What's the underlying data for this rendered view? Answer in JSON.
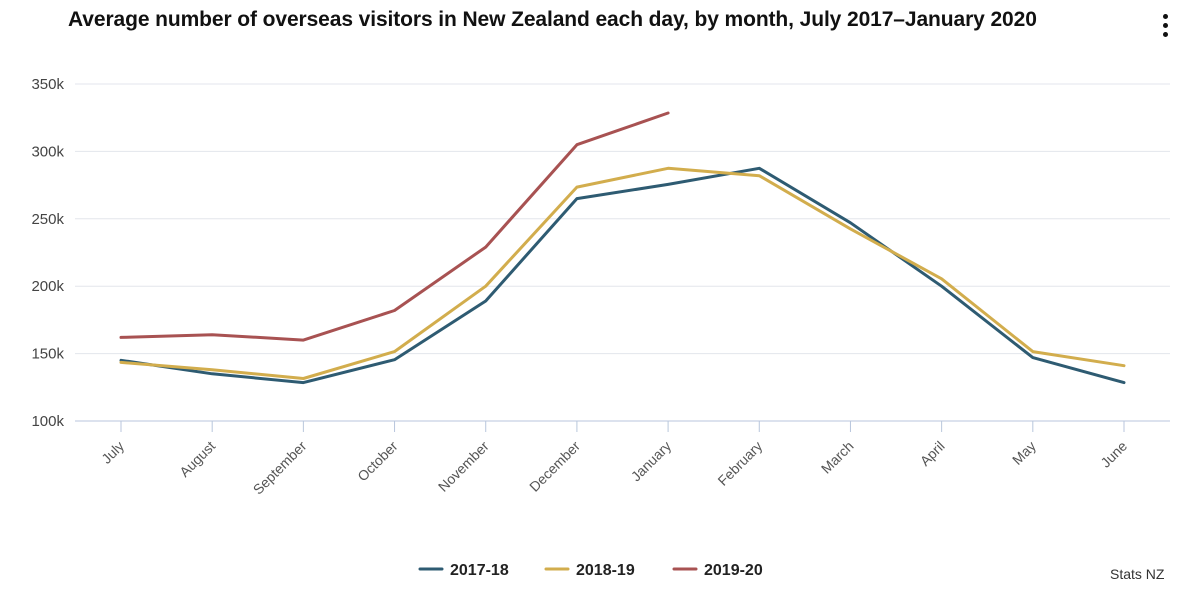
{
  "header": {
    "title": "Average number of overseas visitors in New Zealand each day, by month, July 2017–January 2020"
  },
  "source": "Stats NZ",
  "menu": {
    "icon": "more-vertical-icon"
  },
  "chart_data": {
    "type": "line",
    "title": "Average number of overseas visitors in New Zealand each day, by month, July 2017–January 2020",
    "xlabel": "",
    "ylabel": "",
    "categories": [
      "July",
      "August",
      "September",
      "October",
      "November",
      "December",
      "January",
      "February",
      "March",
      "April",
      "May",
      "June"
    ],
    "ylim": [
      100000,
      350000
    ],
    "yticks": [
      100000,
      150000,
      200000,
      250000,
      300000,
      350000
    ],
    "ytick_labels": [
      "100k",
      "150k",
      "200k",
      "250k",
      "300k",
      "350k"
    ],
    "grid": true,
    "legend_position": "bottom-center",
    "series": [
      {
        "name": "2017-18",
        "color": "#2e5b72",
        "values": [
          145000,
          135000,
          128500,
          145500,
          189000,
          265000,
          275500,
          287500,
          247000,
          200000,
          147000,
          128500
        ]
      },
      {
        "name": "2018-19",
        "color": "#d2ad4d",
        "values": [
          143500,
          138000,
          131500,
          151500,
          200000,
          273500,
          287500,
          282000,
          242500,
          205500,
          151500,
          141000
        ]
      },
      {
        "name": "2019-20",
        "color": "#a85252",
        "values": [
          162000,
          164000,
          160000,
          182000,
          229000,
          305000,
          328500,
          null,
          null,
          null,
          null,
          null
        ]
      }
    ]
  }
}
